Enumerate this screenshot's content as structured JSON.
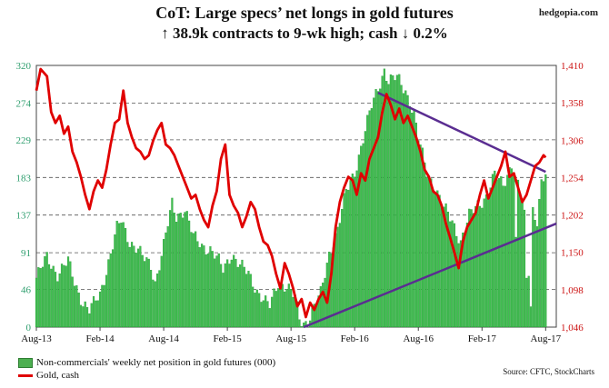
{
  "header": {
    "title": "CoT: Large specs’ net longs in gold futures",
    "subtitle": "↑ 38.9k contracts to 9-wk high; cash ↓ 0.2%",
    "brand": "hedgopia.com"
  },
  "footer": {
    "source": "Source: CFTC, StockCharts"
  },
  "colors": {
    "bars": "#3fbf4f",
    "bars_edge": "#1f8f2f",
    "gold_line": "#e00000",
    "trendline": "#5a2d91",
    "left_axis": "#2e9e6e",
    "right_axis": "#cc1111"
  },
  "chart_data": {
    "type": "bar",
    "title": "CoT: Large specs’ net longs in gold futures",
    "subtitle": "↑ 38.9k contracts to 9-wk high; cash ↓ 0.2%",
    "x_tick_labels": [
      "Aug-13",
      "Feb-14",
      "Aug-14",
      "Feb-15",
      "Aug-15",
      "Feb-16",
      "Aug-16",
      "Feb-17",
      "Aug-17"
    ],
    "left_axis": {
      "ticks": [
        0,
        46,
        91,
        137,
        183,
        229,
        274,
        320
      ],
      "ylim": [
        0,
        320
      ]
    },
    "right_axis": {
      "ticks": [
        1046,
        1098,
        1150,
        1202,
        1254,
        1306,
        1358,
        1410
      ],
      "ylim": [
        1046,
        1410
      ]
    },
    "grid": "horizontal dashed at left-axis ticks",
    "legend": {
      "position": "bottom-left",
      "bars_label": "Non-commercials' weekly net position in gold futures (000)",
      "line_label": "Gold, cash"
    },
    "bar_series": {
      "name": "Non-commercials' weekly net position in gold futures (000)",
      "anchors": [
        [
          0,
          60
        ],
        [
          5,
          85
        ],
        [
          10,
          65
        ],
        [
          15,
          80
        ],
        [
          18,
          55
        ],
        [
          22,
          30
        ],
        [
          25,
          20
        ],
        [
          30,
          40
        ],
        [
          34,
          80
        ],
        [
          38,
          120
        ],
        [
          40,
          130
        ],
        [
          44,
          105
        ],
        [
          48,
          95
        ],
        [
          50,
          85
        ],
        [
          54,
          75
        ],
        [
          56,
          55
        ],
        [
          60,
          100
        ],
        [
          64,
          150
        ],
        [
          66,
          135
        ],
        [
          70,
          145
        ],
        [
          74,
          110
        ],
        [
          78,
          100
        ],
        [
          82,
          95
        ],
        [
          86,
          80
        ],
        [
          88,
          70
        ],
        [
          92,
          90
        ],
        [
          96,
          75
        ],
        [
          100,
          65
        ],
        [
          104,
          45
        ],
        [
          108,
          30
        ],
        [
          110,
          25
        ],
        [
          114,
          55
        ],
        [
          118,
          50
        ],
        [
          122,
          35
        ],
        [
          124,
          10
        ],
        [
          126,
          5
        ],
        [
          128,
          8
        ],
        [
          130,
          20
        ],
        [
          134,
          40
        ],
        [
          138,
          90
        ],
        [
          142,
          120
        ],
        [
          146,
          165
        ],
        [
          150,
          190
        ],
        [
          154,
          230
        ],
        [
          158,
          270
        ],
        [
          162,
          300
        ],
        [
          164,
          315
        ],
        [
          166,
          300
        ],
        [
          170,
          305
        ],
        [
          174,
          290
        ],
        [
          178,
          260
        ],
        [
          180,
          230
        ],
        [
          184,
          190
        ],
        [
          188,
          170
        ],
        [
          192,
          145
        ],
        [
          196,
          130
        ],
        [
          200,
          105
        ],
        [
          204,
          135
        ],
        [
          208,
          150
        ],
        [
          212,
          160
        ],
        [
          216,
          185
        ],
        [
          220,
          175
        ],
        [
          224,
          200
        ],
        [
          228,
          165
        ],
        [
          230,
          135
        ],
        [
          232,
          70
        ],
        [
          234,
          145
        ],
        [
          236,
          130
        ],
        [
          238,
          175
        ],
        [
          240,
          185
        ]
      ],
      "dips": [
        [
          176,
          270
        ],
        [
          226,
          110
        ],
        [
          231,
          60
        ],
        [
          233,
          25
        ]
      ],
      "last_index": 240
    },
    "line_series": {
      "name": "Gold, cash",
      "points": [
        [
          0,
          1375
        ],
        [
          2,
          1405
        ],
        [
          5,
          1395
        ],
        [
          7,
          1345
        ],
        [
          9,
          1330
        ],
        [
          11,
          1340
        ],
        [
          13,
          1315
        ],
        [
          15,
          1325
        ],
        [
          17,
          1290
        ],
        [
          19,
          1275
        ],
        [
          21,
          1255
        ],
        [
          23,
          1230
        ],
        [
          25,
          1210
        ],
        [
          27,
          1235
        ],
        [
          29,
          1250
        ],
        [
          31,
          1240
        ],
        [
          33,
          1265
        ],
        [
          35,
          1300
        ],
        [
          37,
          1330
        ],
        [
          39,
          1335
        ],
        [
          41,
          1375
        ],
        [
          43,
          1330
        ],
        [
          45,
          1310
        ],
        [
          47,
          1295
        ],
        [
          49,
          1290
        ],
        [
          51,
          1280
        ],
        [
          53,
          1285
        ],
        [
          55,
          1305
        ],
        [
          57,
          1320
        ],
        [
          59,
          1330
        ],
        [
          61,
          1300
        ],
        [
          63,
          1295
        ],
        [
          65,
          1285
        ],
        [
          67,
          1270
        ],
        [
          69,
          1255
        ],
        [
          71,
          1240
        ],
        [
          73,
          1225
        ],
        [
          75,
          1230
        ],
        [
          77,
          1210
        ],
        [
          79,
          1195
        ],
        [
          81,
          1185
        ],
        [
          83,
          1215
        ],
        [
          85,
          1235
        ],
        [
          87,
          1280
        ],
        [
          89,
          1300
        ],
        [
          91,
          1230
        ],
        [
          93,
          1215
        ],
        [
          95,
          1205
        ],
        [
          97,
          1185
        ],
        [
          99,
          1200
        ],
        [
          101,
          1220
        ],
        [
          103,
          1210
        ],
        [
          105,
          1185
        ],
        [
          107,
          1165
        ],
        [
          109,
          1160
        ],
        [
          111,
          1145
        ],
        [
          113,
          1120
        ],
        [
          115,
          1100
        ],
        [
          117,
          1135
        ],
        [
          119,
          1120
        ],
        [
          121,
          1100
        ],
        [
          123,
          1075
        ],
        [
          125,
          1085
        ],
        [
          127,
          1060
        ],
        [
          129,
          1080
        ],
        [
          131,
          1070
        ],
        [
          133,
          1085
        ],
        [
          135,
          1095
        ],
        [
          137,
          1080
        ],
        [
          139,
          1120
        ],
        [
          141,
          1185
        ],
        [
          143,
          1220
        ],
        [
          145,
          1240
        ],
        [
          147,
          1255
        ],
        [
          149,
          1250
        ],
        [
          151,
          1230
        ],
        [
          153,
          1260
        ],
        [
          155,
          1250
        ],
        [
          157,
          1280
        ],
        [
          159,
          1295
        ],
        [
          161,
          1310
        ],
        [
          163,
          1345
        ],
        [
          165,
          1370
        ],
        [
          167,
          1355
        ],
        [
          169,
          1335
        ],
        [
          171,
          1350
        ],
        [
          173,
          1330
        ],
        [
          175,
          1340
        ],
        [
          177,
          1325
        ],
        [
          179,
          1310
        ],
        [
          181,
          1290
        ],
        [
          183,
          1265
        ],
        [
          185,
          1255
        ],
        [
          187,
          1235
        ],
        [
          189,
          1230
        ],
        [
          191,
          1215
        ],
        [
          193,
          1190
        ],
        [
          195,
          1170
        ],
        [
          197,
          1150
        ],
        [
          199,
          1128
        ],
        [
          201,
          1165
        ],
        [
          203,
          1185
        ],
        [
          205,
          1195
        ],
        [
          207,
          1205
        ],
        [
          209,
          1230
        ],
        [
          211,
          1250
        ],
        [
          213,
          1225
        ],
        [
          215,
          1240
        ],
        [
          217,
          1255
        ],
        [
          219,
          1270
        ],
        [
          221,
          1290
        ],
        [
          223,
          1255
        ],
        [
          225,
          1260
        ],
        [
          227,
          1240
        ],
        [
          229,
          1220
        ],
        [
          231,
          1230
        ],
        [
          233,
          1250
        ],
        [
          235,
          1270
        ],
        [
          237,
          1275
        ],
        [
          239,
          1285
        ],
        [
          240,
          1282
        ]
      ]
    },
    "trendlines": [
      {
        "name": "upper",
        "points": [
          [
            161,
            1372
          ],
          [
            240,
            1262
          ]
        ]
      },
      {
        "name": "lower",
        "points": [
          [
            126,
            1046
          ],
          [
            245,
            1190
          ]
        ]
      }
    ],
    "x_range": [
      0,
      245
    ]
  }
}
